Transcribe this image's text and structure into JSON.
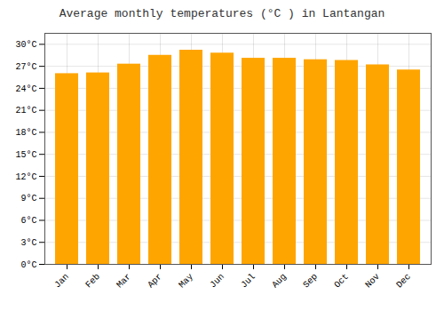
{
  "chart_data": {
    "type": "bar",
    "title": "Average monthly temperatures (°C ) in Lantangan",
    "categories": [
      "Jan",
      "Feb",
      "Mar",
      "Apr",
      "May",
      "Jun",
      "Jul",
      "Aug",
      "Sep",
      "Oct",
      "Nov",
      "Dec"
    ],
    "values": [
      26.0,
      26.1,
      27.3,
      28.5,
      29.2,
      28.8,
      28.1,
      28.1,
      27.9,
      27.8,
      27.2,
      26.5
    ],
    "color": "#FFA500",
    "ylim": [
      0,
      31.5
    ],
    "yticks": [
      {
        "value": 0,
        "label": "0°C"
      },
      {
        "value": 3,
        "label": "3°C"
      },
      {
        "value": 6,
        "label": "6°C"
      },
      {
        "value": 9,
        "label": "9°C"
      },
      {
        "value": 12,
        "label": "12°C"
      },
      {
        "value": 15,
        "label": "15°C"
      },
      {
        "value": 18,
        "label": "18°C"
      },
      {
        "value": 21,
        "label": "21°C"
      },
      {
        "value": 24,
        "label": "24°C"
      },
      {
        "value": 27,
        "label": "27°C"
      },
      {
        "value": 30,
        "label": "30°C"
      }
    ],
    "grid": true
  }
}
